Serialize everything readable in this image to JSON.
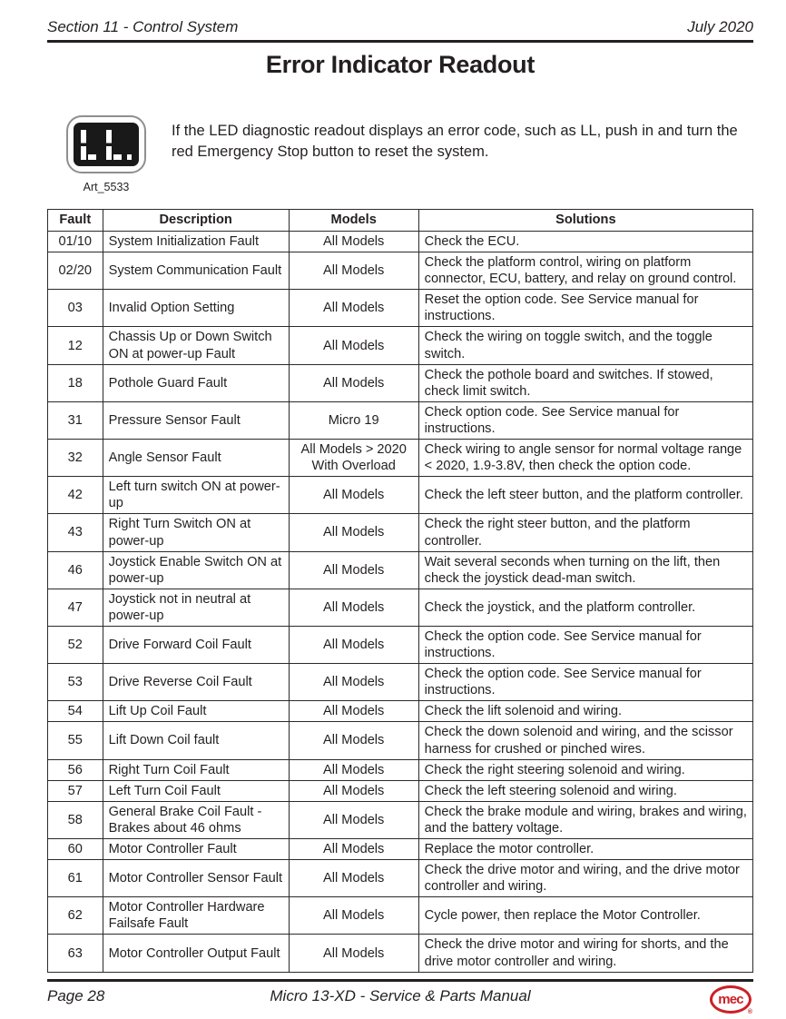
{
  "page_header": {
    "section": "Section 11 - Control System",
    "date": "July 2020"
  },
  "title": "Error Indicator Readout",
  "artwork": {
    "led_code": "LL.",
    "label": "Art_5533"
  },
  "intro": "If the LED diagnostic readout displays an error code, such as LL, push in and turn the red Emergency Stop button to reset the system.",
  "table": {
    "columns": [
      "Fault",
      "Description",
      "Models",
      "Solutions"
    ],
    "rows": [
      [
        "01/10",
        "System Initialization Fault",
        "All Models",
        "Check the ECU."
      ],
      [
        "02/20",
        "System Communication Fault",
        "All Models",
        "Check the platform control, wiring on platform connector, ECU, battery, and relay on ground control."
      ],
      [
        "03",
        "Invalid Option Setting",
        "All Models",
        "Reset the option code. See Service manual for instructions."
      ],
      [
        "12",
        "Chassis Up or Down Switch ON at power-up Fault",
        "All Models",
        "Check the wiring on toggle switch, and the toggle switch."
      ],
      [
        "18",
        "Pothole Guard Fault",
        "All Models",
        "Check the pothole board and switches. If stowed, check limit switch."
      ],
      [
        "31",
        "Pressure Sensor Fault",
        "Micro 19",
        "Check option code. See Service manual for instructions."
      ],
      [
        "32",
        "Angle Sensor Fault",
        "All Models > 2020 With Overload",
        "Check wiring to angle sensor for normal voltage range < 2020, 1.9-3.8V, then check the option code."
      ],
      [
        "42",
        "Left turn switch ON at power-up",
        "All Models",
        "Check the left steer button, and the platform controller."
      ],
      [
        "43",
        "Right Turn Switch ON at power-up",
        "All Models",
        "Check the right steer button, and the platform controller."
      ],
      [
        "46",
        "Joystick Enable Switch ON at power-up",
        "All Models",
        "Wait several seconds when turning on the lift, then check the joystick dead-man switch."
      ],
      [
        "47",
        "Joystick not in neutral at power-up",
        "All Models",
        "Check the joystick, and the platform controller."
      ],
      [
        "52",
        "Drive Forward Coil Fault",
        "All Models",
        "Check the option code. See Service manual for instructions."
      ],
      [
        "53",
        "Drive Reverse Coil Fault",
        "All Models",
        "Check the option code. See Service manual for instructions."
      ],
      [
        "54",
        "Lift Up Coil Fault",
        "All Models",
        "Check the lift solenoid and wiring."
      ],
      [
        "55",
        "Lift Down Coil fault",
        "All Models",
        "Check the down solenoid and wiring, and the scissor harness for crushed or pinched wires."
      ],
      [
        "56",
        "Right Turn Coil Fault",
        "All Models",
        "Check the right steering solenoid and wiring."
      ],
      [
        "57",
        "Left Turn Coil Fault",
        "All Models",
        "Check the left steering solenoid and wiring."
      ],
      [
        "58",
        "General Brake Coil Fault - Brakes about 46 ohms",
        "All Models",
        "Check the brake module and wiring, brakes and wiring, and the battery voltage."
      ],
      [
        "60",
        "Motor Controller Fault",
        "All Models",
        "Replace the motor controller."
      ],
      [
        "61",
        "Motor Controller Sensor Fault",
        "All Models",
        "Check the drive motor and wiring, and the drive motor controller and wiring."
      ],
      [
        "62",
        "Motor Controller Hardware Failsafe Fault",
        "All Models",
        "Cycle power, then replace the Motor Controller."
      ],
      [
        "63",
        "Motor Controller Output Fault",
        "All Models",
        "Check the drive motor and wiring for shorts, and the drive motor controller and wiring."
      ]
    ]
  },
  "footer": {
    "page": "Page 28",
    "manual": "Micro 13-XD - Service & Parts Manual",
    "logo_text": "mec",
    "logo_reg_mark": "®"
  },
  "colors": {
    "brand_red": "#cb2026",
    "text": "#231f20"
  }
}
